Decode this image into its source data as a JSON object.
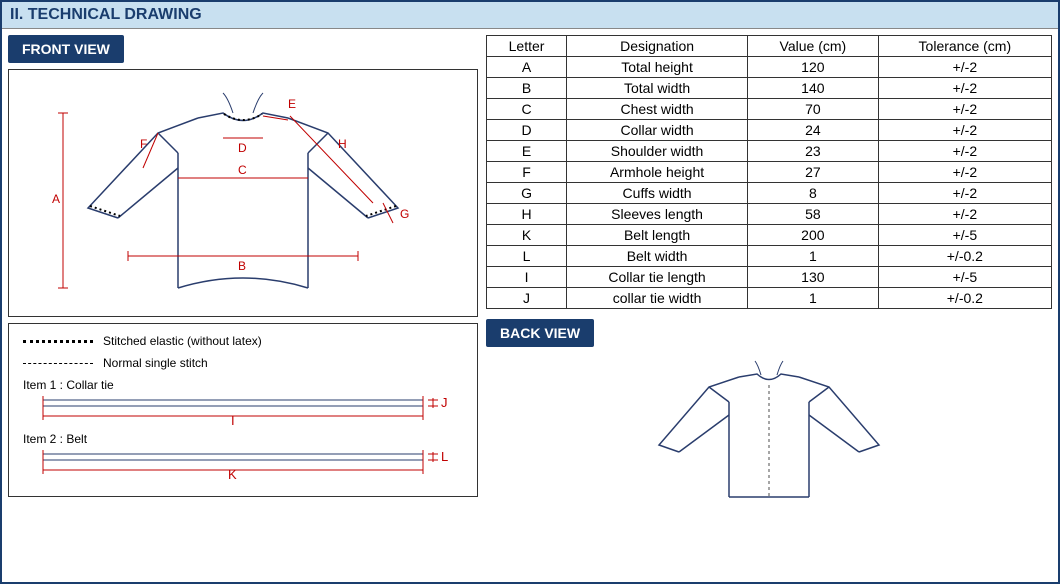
{
  "section_title": "II. TECHNICAL DRAWING",
  "front_view_label": "FRONT VIEW",
  "back_view_label": "BACK VIEW",
  "colors": {
    "header_bg": "#c8e0f0",
    "header_text": "#1a3d6d",
    "label_bg": "#1a3d6d",
    "label_text": "#ffffff",
    "border": "#333333",
    "dim_line": "#c00000",
    "dim_text": "#c00000",
    "gown_stroke": "#2a3d6d",
    "gown_dash": "#666666"
  },
  "legend": {
    "dotted": "Stitched elastic (without latex)",
    "dashed": "Normal single stitch",
    "item1_label": "Item 1 : Collar tie",
    "item1_len_letter": "I",
    "item1_width_letter": "J",
    "item2_label": "Item 2 : Belt",
    "item2_len_letter": "K",
    "item2_width_letter": "L"
  },
  "spec_table": {
    "columns": [
      "Letter",
      "Designation",
      "Value (cm)",
      "Tolerance (cm)"
    ],
    "rows": [
      [
        "A",
        "Total height",
        "120",
        "+/-2"
      ],
      [
        "B",
        "Total width",
        "140",
        "+/-2"
      ],
      [
        "C",
        "Chest width",
        "70",
        "+/-2"
      ],
      [
        "D",
        "Collar width",
        "24",
        "+/-2"
      ],
      [
        "E",
        "Shoulder width",
        "23",
        "+/-2"
      ],
      [
        "F",
        "Armhole height",
        "27",
        "+/-2"
      ],
      [
        "G",
        "Cuffs width",
        "8",
        "+/-2"
      ],
      [
        "H",
        "Sleeves length",
        "58",
        "+/-2"
      ],
      [
        "K",
        "Belt length",
        "200",
        "+/-5"
      ],
      [
        "L",
        "Belt width",
        "1",
        "+/-0.2"
      ],
      [
        "I",
        "Collar tie length",
        "130",
        "+/-5"
      ],
      [
        "J",
        "collar tie width",
        "1",
        "+/-0.2"
      ]
    ]
  },
  "front_drawing": {
    "dim_letters": [
      "A",
      "B",
      "C",
      "D",
      "E",
      "F",
      "G",
      "H"
    ]
  }
}
